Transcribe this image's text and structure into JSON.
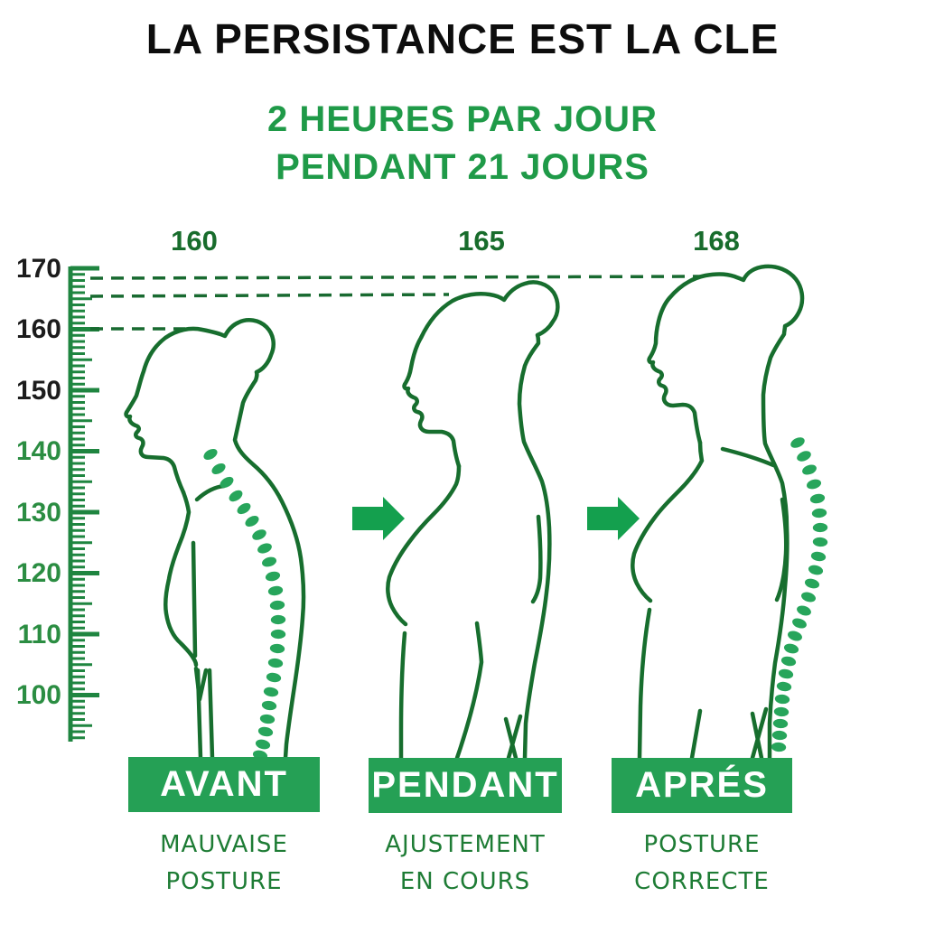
{
  "title": "LA PERSISTANCE EST LA CLE",
  "subtitle": {
    "line1": "2 HEURES PAR JOUR",
    "line2": "PENDANT 21 JOURS"
  },
  "ruler": {
    "labels": [
      "170",
      "160",
      "150",
      "140",
      "130",
      "120",
      "110",
      "100"
    ]
  },
  "stages": [
    {
      "id": "before",
      "height_label": "160",
      "banner": "AVANT",
      "caption_line1": "MAUVAISE",
      "caption_line2": "POSTURE"
    },
    {
      "id": "during",
      "height_label": "165",
      "banner": "PENDANT",
      "caption_line1": "AJUSTEMENT",
      "caption_line2": "EN COURS"
    },
    {
      "id": "after",
      "height_label": "168",
      "banner": "APRÉS",
      "caption_line1": "POSTURE",
      "caption_line2": "CORRECTE"
    }
  ],
  "colors": {
    "title_text": "#0d0d0d",
    "accent_green": "#1f9a48",
    "banner_green": "#25a055",
    "outline_green": "#176e2e",
    "ruler_green": "#1f8540",
    "spine_dot_green": "#27a55b",
    "arrow_green": "#14a04e",
    "caption_green": "#1e7c35",
    "ruler_label_dark": "#1c1c1c",
    "ruler_label_green": "#2b8d42"
  }
}
